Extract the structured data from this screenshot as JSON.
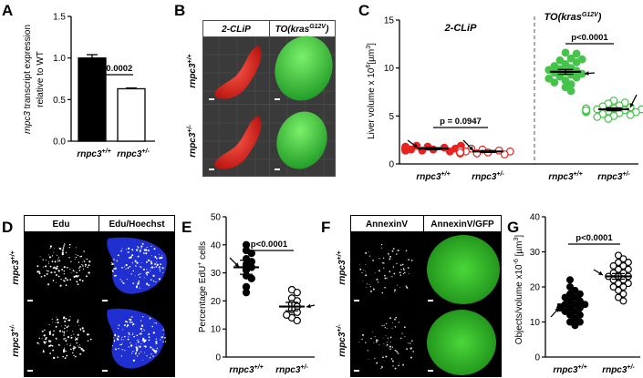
{
  "panels": {
    "A": {
      "letter": "A"
    },
    "B": {
      "letter": "B",
      "col_labels": [
        "2-CLiP",
        "TO(kras",
        "G12V",
        ")"
      ],
      "row_labels": [
        "rnpc3",
        "+/+",
        "rnpc3",
        "+/-"
      ]
    },
    "C": {
      "letter": "C",
      "group_labels": [
        "2-CLiP",
        "TO(kras",
        "G12V",
        ")"
      ]
    },
    "D": {
      "letter": "D",
      "col_labels": [
        "Edu",
        "Edu/Hoechst"
      ],
      "row_labels": [
        "rnpc3",
        "+/+",
        "rnpc3",
        "+/-"
      ]
    },
    "E": {
      "letter": "E"
    },
    "F": {
      "letter": "F",
      "col_labels": [
        "AnnexinV",
        "AnnexinV/GFP"
      ],
      "row_labels": [
        "rnpc3",
        "+/+",
        "rnpc3",
        "+/-"
      ]
    },
    "G": {
      "letter": "G"
    }
  },
  "chart_data": [
    {
      "panel": "A",
      "type": "bar",
      "categories": [
        "rnpc3+/+",
        "rnpc3+/-"
      ],
      "category_parts": [
        [
          "rnpc3",
          "+/+"
        ],
        [
          "rnpc3",
          "+/-"
        ]
      ],
      "values": [
        1.0,
        0.63
      ],
      "errors": [
        0.04,
        0.01
      ],
      "bar_colors": [
        "#000000",
        "#ffffff"
      ],
      "ylabel_parts": [
        "rnpc3",
        " transcript expression"
      ],
      "ylabel2": "relative to WT",
      "ylim": [
        0,
        1.5
      ],
      "yticks": [
        "0.0",
        "0.5",
        "1.0",
        "1.5"
      ],
      "annotation": "p = 0.0002"
    },
    {
      "panel": "C",
      "type": "scatter",
      "categories": [
        "rnpc3+/+",
        "rnpc3+/-",
        "rnpc3+/+",
        "rnpc3+/-"
      ],
      "category_parts": [
        [
          "rnpc3",
          "+/+"
        ],
        [
          "rnpc3",
          "+/-"
        ],
        [
          "rnpc3",
          "+/+"
        ],
        [
          "rnpc3",
          "+/-"
        ]
      ],
      "groups": [
        "2-CLiP",
        "2-CLiP",
        "TO(krasG12V)",
        "TO(krasG12V)"
      ],
      "colors": [
        "#e8231f",
        "#e8231f",
        "#46c34a",
        "#46c34a"
      ],
      "filled": [
        true,
        false,
        true,
        false
      ],
      "means": [
        1.6,
        1.3,
        9.6,
        5.7
      ],
      "sem": [
        0.1,
        0.1,
        0.25,
        0.15
      ],
      "series": [
        {
          "values": [
            1.5,
            1.7,
            1.4,
            1.8,
            1.6,
            1.3,
            1.9,
            1.5,
            1.7,
            1.4,
            1.6,
            1.8,
            1.5,
            1.7,
            1.6,
            1.4,
            1.5,
            1.9,
            1.6,
            1.7
          ]
        },
        {
          "values": [
            1.2,
            1.4,
            1.1,
            1.5,
            1.3,
            1.0,
            1.6,
            1.3,
            1.2,
            1.4,
            1.1,
            1.5,
            1.3,
            1.2,
            1.4,
            1.3,
            1.5,
            1.1,
            1.4,
            1.2
          ]
        },
        {
          "values": [
            11.6,
            11.5,
            11.0,
            10.8,
            10.6,
            10.4,
            10.2,
            10.0,
            9.9,
            9.7,
            9.6,
            9.5,
            9.4,
            9.3,
            9.1,
            9.0,
            8.9,
            8.7,
            8.5,
            8.3,
            8.0,
            7.6,
            10.9,
            9.8
          ]
        },
        {
          "values": [
            6.6,
            6.4,
            6.3,
            6.1,
            6.0,
            5.9,
            5.8,
            5.7,
            5.7,
            5.6,
            5.5,
            5.5,
            5.4,
            5.3,
            5.2,
            5.1,
            5.0,
            4.9,
            4.7,
            5.6,
            5.8,
            5.4,
            5.5,
            5.6
          ]
        }
      ],
      "ylabel": "Liver volume x 10",
      "ylabel_sup": "6",
      "ylabel_unit": "[µm",
      "ylabel_unit_sup": "3",
      "ylabel_end": "]",
      "ylim": [
        0,
        15
      ],
      "yticks": [
        "0",
        "5",
        "10",
        "15"
      ],
      "annotations": [
        "p = 0.0947",
        "p<0.0001"
      ]
    },
    {
      "panel": "E",
      "type": "scatter",
      "categories": [
        "rnpc3+/+",
        "rnpc3+/-"
      ],
      "category_parts": [
        [
          "rnpc3",
          "+/+"
        ],
        [
          "rnpc3",
          "+/-"
        ]
      ],
      "filled": [
        true,
        false
      ],
      "means": [
        32,
        18
      ],
      "sem": [
        2.5,
        1.5
      ],
      "series": [
        {
          "values": [
            40,
            38,
            37,
            35,
            34,
            33,
            32,
            31,
            29,
            28,
            25,
            23
          ]
        },
        {
          "values": [
            24,
            23,
            21,
            20,
            19,
            18,
            17,
            16,
            14,
            15,
            13
          ]
        }
      ],
      "ylabel": "Percentage EdU",
      "ylabel_sup": "+",
      "ylabel_end": " cells",
      "ylim": [
        0,
        50
      ],
      "yticks": [
        "0",
        "10",
        "20",
        "30",
        "40",
        "50"
      ],
      "annotation": "p<0.0001"
    },
    {
      "panel": "G",
      "type": "scatter",
      "categories": [
        "rnpc3+/+",
        "rnpc3+/-"
      ],
      "category_parts": [
        [
          "rnpc3",
          "+/+"
        ],
        [
          "rnpc3",
          "+/-"
        ]
      ],
      "filled": [
        true,
        false
      ],
      "means": [
        15,
        23
      ],
      "sem": [
        0.8,
        0.8
      ],
      "series": [
        {
          "values": [
            22,
            20,
            19,
            18,
            18,
            17,
            17,
            16,
            16,
            15,
            15,
            15,
            14,
            14,
            14,
            13,
            13,
            12,
            12,
            11,
            10,
            10,
            9
          ]
        },
        {
          "values": [
            29,
            28,
            27,
            27,
            26,
            26,
            25,
            25,
            24,
            24,
            23,
            23,
            23,
            22,
            22,
            21,
            21,
            20,
            20,
            19,
            18,
            17,
            16
          ]
        }
      ],
      "ylabel": "Objects/volume x10",
      "ylabel_sup": "-6",
      "ylabel_unit": " [µm",
      "ylabel_unit_sup": "3",
      "ylabel_end": "]",
      "ylim": [
        0,
        40
      ],
      "yticks": [
        "0",
        "10",
        "20",
        "30",
        "40"
      ],
      "annotation": "p<0.0001"
    }
  ]
}
